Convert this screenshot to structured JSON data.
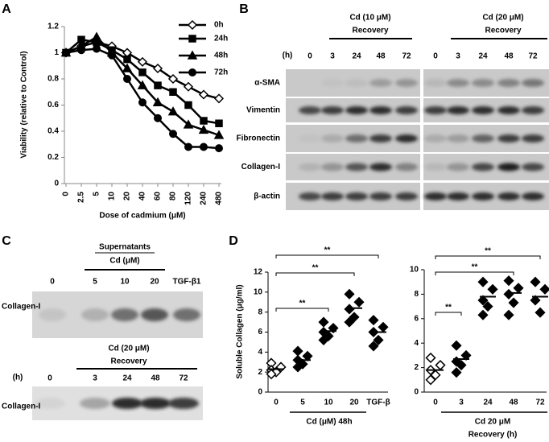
{
  "panel_labels": [
    "A",
    "B",
    "C",
    "D"
  ],
  "chart_data": [
    {
      "type": "line",
      "ylabel": "Viability (relative to Control)",
      "xlabel": "Dose of cadmium (μM)",
      "categories": [
        "0",
        "2.5",
        "5",
        "10",
        "20",
        "40",
        "60",
        "80",
        "120",
        "240",
        "480"
      ],
      "ylim": [
        0,
        1.2
      ],
      "yticks": [
        0,
        0.2,
        0.4,
        0.6,
        0.8,
        1,
        1.2
      ],
      "legend": "top-right",
      "series": [
        {
          "name": "0h",
          "color": "#000000",
          "marker": "open-diamond",
          "values": [
            1,
            1.05,
            1.08,
            1.05,
            1.0,
            0.93,
            0.88,
            0.8,
            0.74,
            0.68,
            0.65
          ]
        },
        {
          "name": "24h",
          "color": "#000000",
          "marker": "square",
          "values": [
            1,
            1.1,
            1.08,
            1.02,
            0.95,
            0.85,
            0.75,
            0.7,
            0.6,
            0.48,
            0.46
          ]
        },
        {
          "name": "48h",
          "color": "#000000",
          "marker": "triangle",
          "values": [
            1,
            1.05,
            1.12,
            1.0,
            0.88,
            0.75,
            0.62,
            0.55,
            0.45,
            0.41,
            0.37
          ]
        },
        {
          "name": "72h",
          "color": "#000000",
          "marker": "circle",
          "values": [
            1,
            1.02,
            1.03,
            0.98,
            0.8,
            0.62,
            0.5,
            0.38,
            0.28,
            0.28,
            0.27
          ]
        }
      ]
    },
    {
      "type": "dot",
      "ylabel": "Soluble Collagen (μg/ml)",
      "xlabel": [
        "Cd (μM) 48h"
      ],
      "ylim": [
        0,
        12
      ],
      "yticks": [
        0,
        2,
        4,
        6,
        8,
        10,
        12
      ],
      "annotations": [
        "**",
        "**",
        "**"
      ],
      "groups": [
        {
          "category": "0",
          "marker": "open-diamond",
          "values": [
            2.9,
            2.5,
            2.2,
            2.0,
            1.8
          ],
          "mean": 2.3
        },
        {
          "category": "5",
          "marker": "diamond",
          "values": [
            4.1,
            3.6,
            3.2,
            2.8,
            2.5
          ],
          "mean": 3.2
        },
        {
          "category": "10",
          "marker": "diamond",
          "values": [
            7.0,
            6.4,
            6.0,
            5.6,
            5.2
          ],
          "mean": 6.1
        },
        {
          "category": "20",
          "marker": "diamond",
          "values": [
            9.8,
            9.0,
            8.3,
            7.5,
            7.0
          ],
          "mean": 8.4
        },
        {
          "category": "TGF-β",
          "marker": "diamond",
          "values": [
            7.2,
            6.5,
            6.0,
            5.2,
            4.6
          ],
          "mean": 6.0
        }
      ]
    },
    {
      "type": "dot",
      "xlabel": [
        "Cd 20 μM",
        "Recovery (h)"
      ],
      "ylim": [
        0,
        10
      ],
      "yticks": [
        0,
        2,
        4,
        6,
        8,
        10
      ],
      "annotations": [
        "**",
        "**",
        "**"
      ],
      "groups": [
        {
          "category": "0",
          "marker": "open-diamond",
          "values": [
            2.8,
            2.2,
            1.8,
            1.4,
            1.0
          ],
          "mean": 1.8
        },
        {
          "category": "3",
          "marker": "diamond",
          "values": [
            3.8,
            3.0,
            2.5,
            2.2,
            1.6
          ],
          "mean": 2.7
        },
        {
          "category": "24",
          "marker": "diamond",
          "values": [
            9.0,
            8.4,
            7.5,
            7.0,
            6.3
          ],
          "mean": 7.8
        },
        {
          "category": "48",
          "marker": "diamond",
          "values": [
            9.1,
            8.5,
            8.0,
            7.3,
            6.3
          ],
          "mean": 8.1
        },
        {
          "category": "72",
          "marker": "diamond",
          "values": [
            9.0,
            8.4,
            7.5,
            6.5
          ],
          "mean": 7.8
        }
      ]
    }
  ],
  "blot_b": {
    "groups": [
      {
        "title": "Cd (10 μM)",
        "subtitle": "Recovery"
      },
      {
        "title": "Cd (20 μM)",
        "subtitle": "Recovery"
      }
    ],
    "unit": "(h)",
    "lanes": [
      "0",
      "3",
      "24",
      "48",
      "72",
      "0",
      "3",
      "24",
      "48",
      "72"
    ],
    "rows": [
      "α-SMA",
      "Vimentin",
      "Fibronectin",
      "Collagen-I",
      "β-actin"
    ]
  },
  "blot_c_top": {
    "title": "Supernatants",
    "subtitle": "Cd (μM)",
    "lanes": [
      "0",
      "5",
      "10",
      "20",
      "TGF-β1"
    ],
    "rows": [
      "Collagen-I"
    ]
  },
  "blot_c_bottom": {
    "title": "Cd (20 μM)",
    "subtitle": "Recovery",
    "unit": "(h)",
    "lanes": [
      "0",
      "3",
      "24",
      "48",
      "72"
    ],
    "rows": [
      "Collagen-I"
    ]
  }
}
